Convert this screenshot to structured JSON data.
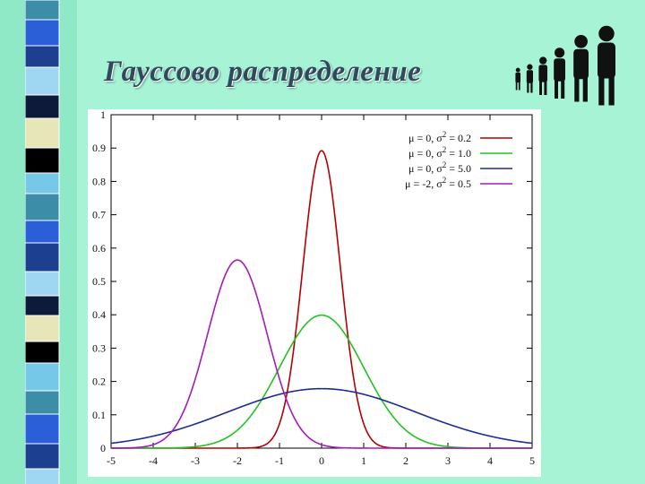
{
  "title": "Гауссово распределение",
  "colors": {
    "background": "#a6f3d6",
    "title": "#2f4a5c"
  },
  "decoration": {
    "left_strip_icon": "checkered-square-strip",
    "figures_icon": "walking-people-silhouettes"
  },
  "chart_data": {
    "type": "line",
    "title": "",
    "xlabel": "",
    "ylabel": "",
    "xlim": [
      -5,
      5
    ],
    "ylim": [
      0,
      1
    ],
    "x_ticks": [
      "-5",
      "-4",
      "-3",
      "-2",
      "-1",
      "0",
      "1",
      "2",
      "3",
      "4",
      "5"
    ],
    "y_ticks": [
      "0",
      "0.1",
      "0.2",
      "0.3",
      "0.4",
      "0.5",
      "0.6",
      "0.7",
      "0.8",
      "0.9",
      "1"
    ],
    "grid": false,
    "legend_position": "top-right",
    "series": [
      {
        "name": "μ = 0, σ² = 0.2",
        "legend": {
          "prefix": "μ = 0, σ",
          "exp": "2",
          "suffix": " = 0.2"
        },
        "mu": 0,
        "sigma2": 0.2,
        "color": "#b40000"
      },
      {
        "name": "μ = 0, σ² = 1.0",
        "legend": {
          "prefix": "μ = 0, σ",
          "exp": "2",
          "suffix": " = 1.0"
        },
        "mu": 0,
        "sigma2": 1.0,
        "color": "#22c322"
      },
      {
        "name": "μ = 0, σ² = 5.0",
        "legend": {
          "prefix": "μ = 0, σ",
          "exp": "2",
          "suffix": " = 5.0"
        },
        "mu": 0,
        "sigma2": 5.0,
        "color": "#1d2a9a"
      },
      {
        "name": "μ = -2, σ² = 0.5",
        "legend": {
          "prefix": "μ = -2, σ",
          "exp": "2",
          "suffix": " = 0.5"
        },
        "mu": -2,
        "sigma2": 0.5,
        "color": "#a21cb8"
      }
    ]
  }
}
